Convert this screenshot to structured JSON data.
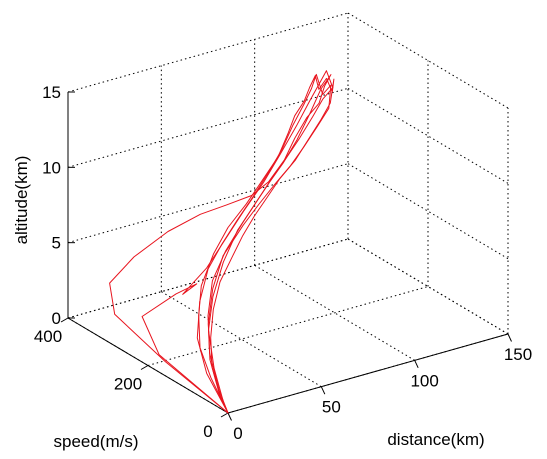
{
  "chart_data": {
    "type": "line",
    "projection": "3d",
    "grid": true,
    "title": "",
    "axes": {
      "x": {
        "label": "distance(km)",
        "range": [
          0,
          150
        ],
        "ticks": [
          "0",
          "50",
          "100",
          "150"
        ],
        "tick_values": [
          0,
          50,
          100,
          150
        ]
      },
      "y": {
        "label": "speed(m/s)",
        "range": [
          0,
          400
        ],
        "ticks": [
          "0",
          "200",
          "400"
        ],
        "tick_values": [
          0,
          200,
          400
        ]
      },
      "z": {
        "label": "altitude(km)",
        "range": [
          0,
          15
        ],
        "ticks": [
          "0",
          "5",
          "10",
          "15"
        ],
        "tick_values": [
          0,
          5,
          10,
          15
        ]
      }
    },
    "series": [
      {
        "color": "#e8141e",
        "points": [
          [
            0,
            0,
            0
          ],
          [
            8,
            80,
            0.8
          ],
          [
            15,
            140,
            1.6
          ],
          [
            25,
            190,
            2.6
          ],
          [
            35,
            230,
            3.6
          ],
          [
            48,
            260,
            4.8
          ],
          [
            60,
            280,
            5.8
          ],
          [
            72,
            290,
            6.8
          ],
          [
            82,
            295,
            8.0
          ],
          [
            90,
            295,
            9.2
          ],
          [
            96,
            298,
            10.5
          ],
          [
            100,
            300,
            11.5
          ],
          [
            104,
            295,
            12.4
          ],
          [
            108,
            300,
            13.1
          ],
          [
            110,
            295,
            13.9
          ],
          [
            113,
            300,
            12.8
          ],
          [
            116,
            295,
            13.5
          ],
          [
            118,
            290,
            12.6
          ],
          [
            121,
            300,
            13.2
          ],
          [
            118,
            295,
            11.8
          ],
          [
            112,
            290,
            11.0
          ],
          [
            104,
            285,
            10.0
          ],
          [
            96,
            280,
            9.0
          ],
          [
            88,
            282,
            8.0
          ],
          [
            80,
            275,
            7.2
          ],
          [
            72,
            270,
            6.3
          ],
          [
            64,
            262,
            5.4
          ],
          [
            56,
            250,
            4.5
          ],
          [
            45,
            230,
            3.5
          ],
          [
            35,
            200,
            2.5
          ],
          [
            25,
            160,
            1.6
          ],
          [
            15,
            110,
            0.8
          ],
          [
            5,
            40,
            0.1
          ],
          [
            0,
            0,
            0
          ]
        ]
      },
      {
        "color": "#e8141e",
        "points": [
          [
            0,
            0,
            0
          ],
          [
            5,
            180,
            0.4
          ],
          [
            10,
            330,
            1.0
          ],
          [
            18,
            380,
            2.0
          ],
          [
            30,
            375,
            3.4
          ],
          [
            45,
            360,
            4.8
          ],
          [
            58,
            340,
            5.8
          ],
          [
            68,
            320,
            6.4
          ],
          [
            78,
            305,
            6.9
          ],
          [
            86,
            300,
            7.6
          ],
          [
            94,
            298,
            8.8
          ],
          [
            100,
            300,
            10.0
          ],
          [
            106,
            298,
            11.2
          ],
          [
            112,
            295,
            12.0
          ],
          [
            116,
            300,
            12.9
          ],
          [
            119,
            298,
            13.6
          ],
          [
            113,
            295,
            12.9
          ],
          [
            106,
            290,
            11.6
          ],
          [
            98,
            285,
            10.2
          ],
          [
            90,
            282,
            9.0
          ],
          [
            82,
            280,
            8.0
          ],
          [
            74,
            276,
            7.0
          ],
          [
            62,
            265,
            5.8
          ],
          [
            50,
            245,
            4.4
          ],
          [
            38,
            215,
            3.0
          ],
          [
            26,
            170,
            1.9
          ],
          [
            14,
            100,
            0.9
          ],
          [
            4,
            30,
            0.1
          ],
          [
            0,
            0,
            0
          ]
        ]
      },
      {
        "color": "#e8141e",
        "points": [
          [
            0,
            0,
            0
          ],
          [
            10,
            100,
            0.7
          ],
          [
            20,
            170,
            1.6
          ],
          [
            32,
            220,
            2.8
          ],
          [
            44,
            255,
            4.0
          ],
          [
            55,
            272,
            5.0
          ],
          [
            66,
            285,
            6.0
          ],
          [
            76,
            292,
            7.1
          ],
          [
            85,
            296,
            8.3
          ],
          [
            93,
            298,
            9.6
          ],
          [
            99,
            300,
            10.9
          ],
          [
            105,
            300,
            12.1
          ],
          [
            109,
            300,
            13.0
          ],
          [
            112,
            302,
            13.8
          ],
          [
            115,
            300,
            12.4
          ],
          [
            119,
            298,
            12.9
          ],
          [
            117,
            294,
            11.5
          ],
          [
            110,
            290,
            10.6
          ],
          [
            102,
            286,
            9.6
          ],
          [
            94,
            284,
            8.6
          ],
          [
            86,
            282,
            7.8
          ],
          [
            76,
            278,
            6.8
          ],
          [
            66,
            270,
            5.9
          ],
          [
            52,
            255,
            4.6
          ],
          [
            40,
            225,
            3.3
          ],
          [
            28,
            180,
            2.1
          ],
          [
            16,
            120,
            1.1
          ],
          [
            6,
            50,
            0.3
          ],
          [
            0,
            0,
            0
          ]
        ]
      },
      {
        "color": "#e8141e",
        "points": [
          [
            0,
            0,
            0
          ],
          [
            6,
            200,
            0.5
          ],
          [
            14,
            280,
            1.5
          ],
          [
            30,
            270,
            2.6
          ],
          [
            40,
            265,
            3.0
          ],
          [
            34,
            272,
            2.4
          ],
          [
            46,
            268,
            3.8
          ],
          [
            58,
            278,
            5.1
          ],
          [
            70,
            288,
            6.4
          ],
          [
            82,
            294,
            7.8
          ],
          [
            92,
            298,
            9.3
          ],
          [
            101,
            300,
            10.8
          ],
          [
            108,
            300,
            12.2
          ],
          [
            114,
            302,
            13.2
          ],
          [
            117,
            300,
            13.9
          ],
          [
            120,
            298,
            12.7
          ],
          [
            114,
            295,
            12.2
          ],
          [
            108,
            292,
            11.3
          ],
          [
            100,
            288,
            10.2
          ],
          [
            92,
            286,
            9.1
          ],
          [
            84,
            284,
            8.1
          ],
          [
            76,
            280,
            7.1
          ],
          [
            66,
            272,
            6.0
          ],
          [
            54,
            258,
            4.8
          ],
          [
            42,
            235,
            3.6
          ],
          [
            30,
            190,
            2.4
          ],
          [
            18,
            130,
            1.3
          ],
          [
            7,
            55,
            0.4
          ],
          [
            0,
            0,
            0
          ]
        ]
      }
    ]
  }
}
